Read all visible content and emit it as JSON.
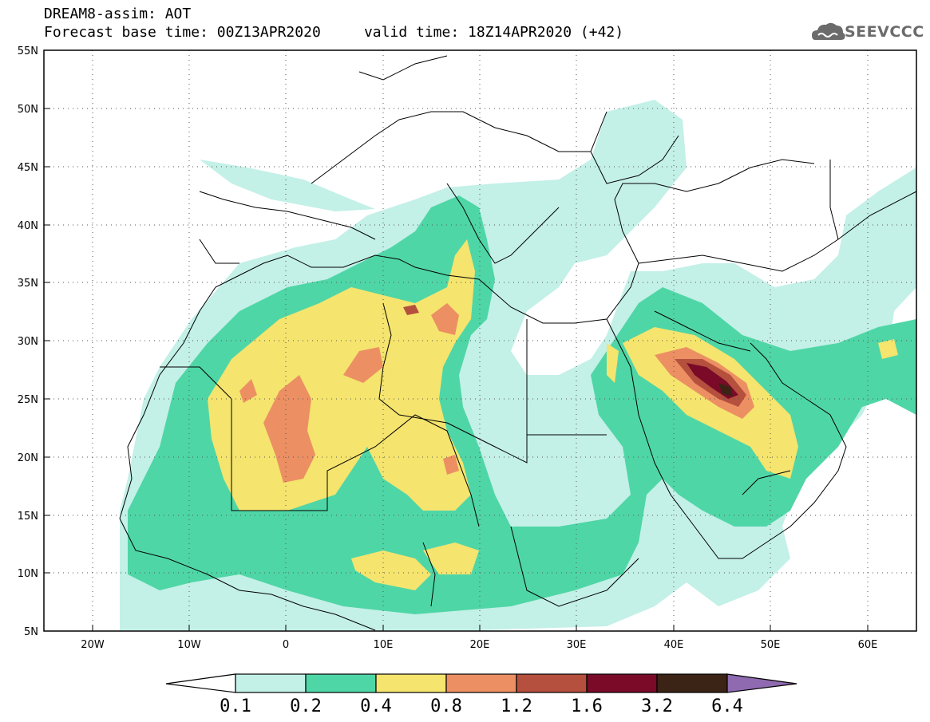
{
  "header": {
    "title_line1": "DREAM8-assim: AOT",
    "title_line2": "Forecast base time: 00Z13APR2020     valid time: 18Z14APR2020 (+42)"
  },
  "logo": {
    "text": "SEEVCCC",
    "icon": "cloud-logo-icon"
  },
  "map": {
    "lat_labels": [
      "55N",
      "50N",
      "45N",
      "40N",
      "35N",
      "30N",
      "25N",
      "20N",
      "15N",
      "10N",
      "5N"
    ],
    "lon_labels": [
      "20W",
      "10W",
      "0",
      "10E",
      "20E",
      "30E",
      "40E",
      "50E",
      "60E"
    ],
    "lon_range": [
      -25,
      65
    ],
    "lat_range": [
      5,
      55
    ],
    "grid": "dotted"
  },
  "legend": {
    "labels": [
      "0.1",
      "0.2",
      "0.4",
      "0.8",
      "1.2",
      "1.6",
      "3.2",
      "6.4"
    ],
    "colors": [
      "#ffffff",
      "#c3f0e7",
      "#4fd6a6",
      "#f5e46e",
      "#ec8f63",
      "#b4503d",
      "#7a0a28",
      "#3b2416",
      "#8f6ab0"
    ]
  }
}
